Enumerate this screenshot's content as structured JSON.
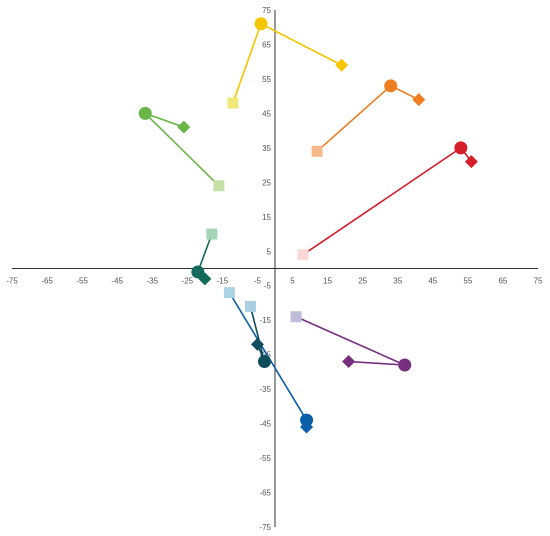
{
  "chart_data": {
    "type": "scatter",
    "xlim": [
      -75,
      75
    ],
    "ylim": [
      -75,
      75
    ],
    "x_ticks": [
      -75,
      -65,
      -55,
      -45,
      -35,
      -25,
      -15,
      -5,
      5,
      15,
      25,
      35,
      45,
      55,
      65,
      75
    ],
    "y_ticks": [
      75,
      65,
      55,
      45,
      35,
      25,
      15,
      5,
      -5,
      -15,
      -25,
      -35,
      -45,
      -55,
      -65,
      -75
    ],
    "grid": false,
    "legend": "none",
    "groups": [
      {
        "color": "#f5c500",
        "light": "#f0e878",
        "square": [
          -12,
          48
        ],
        "circle": [
          -4,
          71
        ],
        "diamond": [
          19,
          59
        ]
      },
      {
        "color": "#ef7d22",
        "light": "#f7b98a",
        "square": [
          12,
          34
        ],
        "circle": [
          33,
          53
        ],
        "diamond": [
          41,
          49
        ]
      },
      {
        "color": "#6ab547",
        "light": "#c6e0a6",
        "square": [
          -16,
          24
        ],
        "circle": [
          -37,
          45
        ],
        "diamond": [
          -26,
          41
        ]
      },
      {
        "color": "#d41f2a",
        "light": "#fbd8d6",
        "square": [
          8,
          4
        ],
        "circle": [
          53,
          35
        ],
        "diamond": [
          56,
          31
        ]
      },
      {
        "color": "#116a5c",
        "light": "#a3d4b6",
        "square": [
          -18,
          10
        ],
        "circle": [
          -22,
          -1
        ],
        "diamond": [
          -20,
          -3
        ]
      },
      {
        "color": "#0b5ea8",
        "light": "#a9d4e1",
        "square": [
          -13,
          -7
        ],
        "circle": [
          9,
          -44
        ],
        "diamond": [
          9,
          -46
        ]
      },
      {
        "color": "#0f4c5c",
        "light": "#a9cfe0",
        "square": [
          -7,
          -11
        ],
        "circle": [
          -3,
          -27
        ],
        "diamond": [
          -5,
          -22
        ]
      },
      {
        "color": "#77307f",
        "light": "#c0bcdb",
        "square": [
          6,
          -14
        ],
        "circle": [
          37,
          -28
        ],
        "diamond": [
          21,
          -27
        ]
      }
    ]
  }
}
